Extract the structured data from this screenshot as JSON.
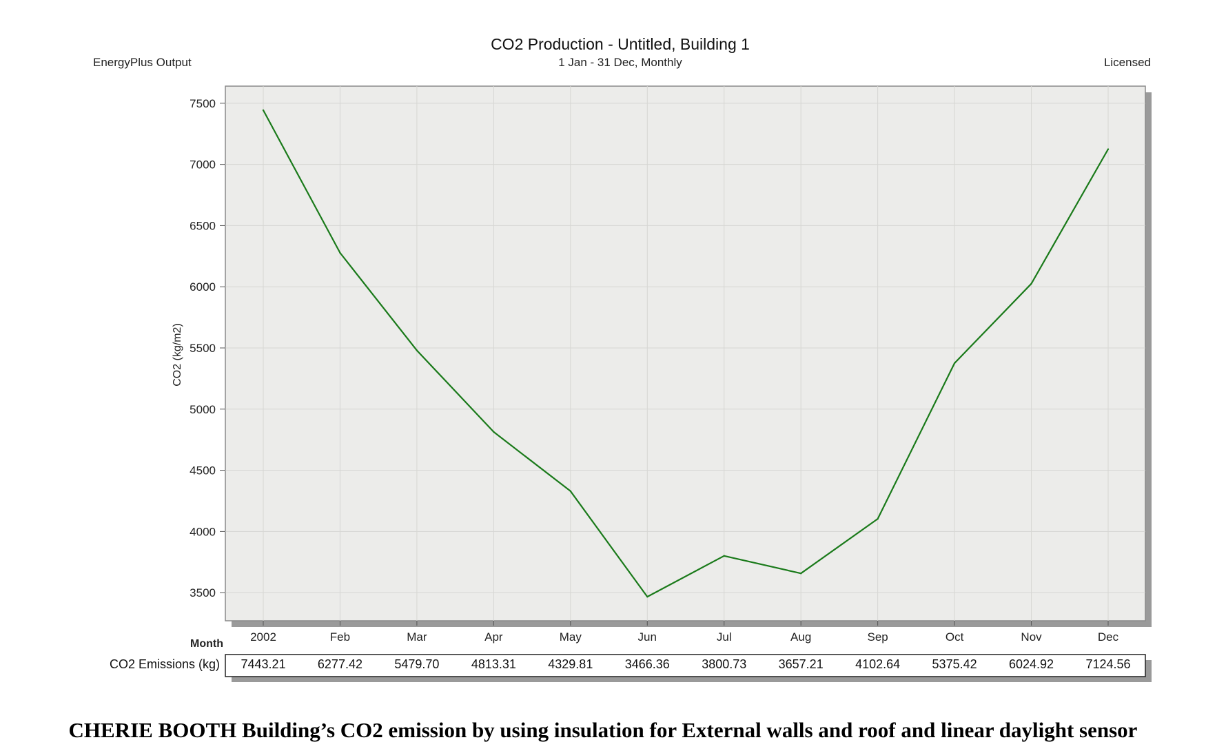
{
  "header": {
    "left_label": "EnergyPlus Output",
    "right_label": "Licensed"
  },
  "chart_data": {
    "type": "line",
    "title": "CO2 Production - Untitled, Building 1",
    "subtitle": "1 Jan - 31 Dec, Monthly",
    "xlabel": "Month",
    "ylabel": "CO2 (kg/m2)",
    "categories": [
      "2002",
      "Feb",
      "Mar",
      "Apr",
      "May",
      "Jun",
      "Jul",
      "Aug",
      "Sep",
      "Oct",
      "Nov",
      "Dec"
    ],
    "series": [
      {
        "name": "CO2 Emissions (kg)",
        "color": "#1a7a1a",
        "values": [
          7443.21,
          6277.42,
          5479.7,
          4813.31,
          4329.81,
          3466.36,
          3800.73,
          3657.21,
          4102.64,
          5375.42,
          6024.92,
          7124.56
        ],
        "labels": [
          "7443.21",
          "6277.42",
          "5479.70",
          "4813.31",
          "4329.81",
          "3466.36",
          "3800.73",
          "3657.21",
          "4102.64",
          "5375.42",
          "6024.92",
          "7124.56"
        ]
      }
    ],
    "yticks": [
      "3500",
      "4000",
      "4500",
      "5000",
      "5500",
      "6000",
      "6500",
      "7000",
      "7500"
    ],
    "ylim": [
      3270,
      7640
    ],
    "grid": true,
    "plot_background": "#ececea",
    "legend": "table-bottom"
  },
  "caption": "CHERIE BOOTH Building’s CO2 emission by using insulation for External walls and roof and linear daylight sensor"
}
